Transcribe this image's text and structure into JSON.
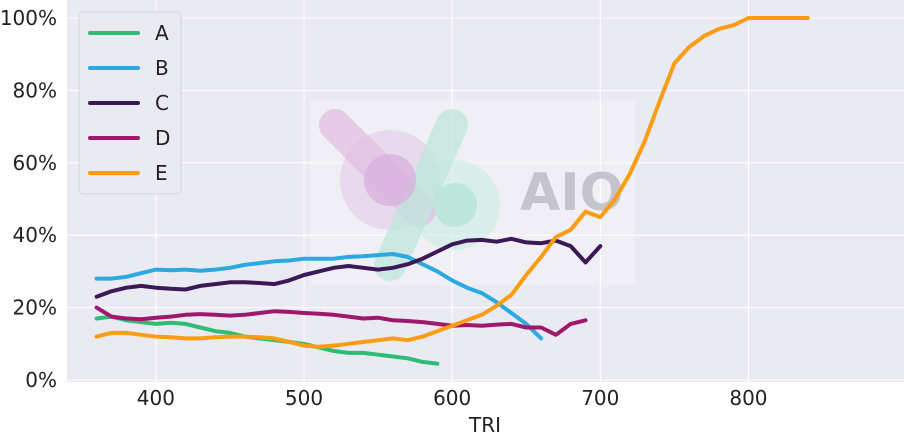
{
  "chart_data": {
    "type": "line",
    "title": "",
    "xlabel": "TRI",
    "ylabel": "",
    "xlim": [
      340,
      905
    ],
    "ylim": [
      0,
      100
    ],
    "x_ticks": [
      400,
      500,
      600,
      700,
      800
    ],
    "y_ticks": [
      0,
      20,
      40,
      60,
      80,
      100
    ],
    "y_tick_labels": [
      "0%",
      "20%",
      "40%",
      "60%",
      "80%",
      "100%"
    ],
    "grid": true,
    "legend_position": "top-left",
    "watermark": "AIO",
    "series": [
      {
        "name": "A",
        "color": "#2dbd78",
        "x": [
          360,
          370,
          380,
          390,
          400,
          410,
          420,
          430,
          440,
          450,
          460,
          470,
          480,
          490,
          500,
          510,
          520,
          530,
          540,
          550,
          560,
          570,
          580,
          590
        ],
        "y": [
          17,
          17.5,
          16.5,
          16,
          15.5,
          15.8,
          15.5,
          14.5,
          13.5,
          13,
          12,
          11.5,
          11,
          10.5,
          10,
          9,
          8,
          7.5,
          7.5,
          7,
          6.5,
          6,
          5,
          4.5
        ]
      },
      {
        "name": "B",
        "color": "#2ba9e1",
        "x": [
          360,
          370,
          380,
          390,
          400,
          410,
          420,
          430,
          440,
          450,
          460,
          470,
          480,
          490,
          500,
          510,
          520,
          530,
          540,
          550,
          560,
          570,
          580,
          590,
          600,
          610,
          620,
          630,
          640,
          650,
          660
        ],
        "y": [
          28,
          28,
          28.5,
          29.5,
          30.5,
          30.3,
          30.5,
          30.2,
          30.5,
          31,
          31.8,
          32.3,
          32.8,
          33,
          33.5,
          33.5,
          33.5,
          34,
          34.2,
          34.5,
          34.8,
          34,
          32,
          30,
          27.5,
          25.5,
          24,
          21.5,
          18.5,
          15.5,
          11.5
        ]
      },
      {
        "name": "C",
        "color": "#3b1856",
        "x": [
          360,
          370,
          380,
          390,
          400,
          410,
          420,
          430,
          440,
          450,
          460,
          470,
          480,
          490,
          500,
          510,
          520,
          530,
          540,
          550,
          560,
          570,
          580,
          590,
          600,
          610,
          620,
          630,
          640,
          650,
          660,
          670,
          680,
          690,
          700
        ],
        "y": [
          23,
          24.5,
          25.5,
          26,
          25.5,
          25.2,
          25,
          26,
          26.5,
          27,
          27,
          26.8,
          26.5,
          27.5,
          29,
          30,
          31,
          31.5,
          31,
          30.5,
          31,
          32,
          33.5,
          35.5,
          37.5,
          38.5,
          38.7,
          38.2,
          39,
          38,
          37.8,
          38.5,
          37,
          32.5,
          37
        ]
      },
      {
        "name": "D",
        "color": "#a0186b",
        "x": [
          360,
          370,
          380,
          390,
          400,
          410,
          420,
          430,
          440,
          450,
          460,
          470,
          480,
          490,
          500,
          510,
          520,
          530,
          540,
          550,
          560,
          570,
          580,
          590,
          600,
          610,
          620,
          630,
          640,
          650,
          660,
          670,
          680,
          690
        ],
        "y": [
          20,
          17.5,
          17,
          16.8,
          17.2,
          17.5,
          18,
          18.2,
          18,
          17.8,
          18,
          18.5,
          19,
          18.8,
          18.5,
          18.3,
          18,
          17.5,
          17,
          17.2,
          16.5,
          16.3,
          16,
          15.5,
          15,
          15.2,
          15,
          15.3,
          15.5,
          14.5,
          14.5,
          12.5,
          15.5,
          16.5
        ]
      },
      {
        "name": "E",
        "color": "#fa9d12",
        "x": [
          360,
          370,
          380,
          390,
          400,
          410,
          420,
          430,
          440,
          450,
          460,
          470,
          480,
          490,
          500,
          510,
          520,
          530,
          540,
          550,
          560,
          570,
          580,
          590,
          600,
          610,
          620,
          630,
          640,
          650,
          660,
          670,
          680,
          690,
          700,
          710,
          720,
          730,
          740,
          750,
          760,
          770,
          780,
          790,
          800,
          810,
          820,
          830,
          840
        ],
        "y": [
          12,
          13,
          13,
          12.5,
          12,
          11.8,
          11.5,
          11.5,
          11.8,
          12,
          12,
          11.8,
          11.5,
          10.5,
          9.5,
          9.2,
          9.5,
          10,
          10.5,
          11,
          11.5,
          11,
          12,
          13.5,
          15,
          16.5,
          18,
          20.5,
          23.5,
          29,
          34,
          39.5,
          41.5,
          46.5,
          45,
          50,
          57,
          66,
          77,
          87.5,
          92,
          95,
          97,
          98,
          100,
          100,
          100,
          100,
          100
        ]
      }
    ]
  }
}
